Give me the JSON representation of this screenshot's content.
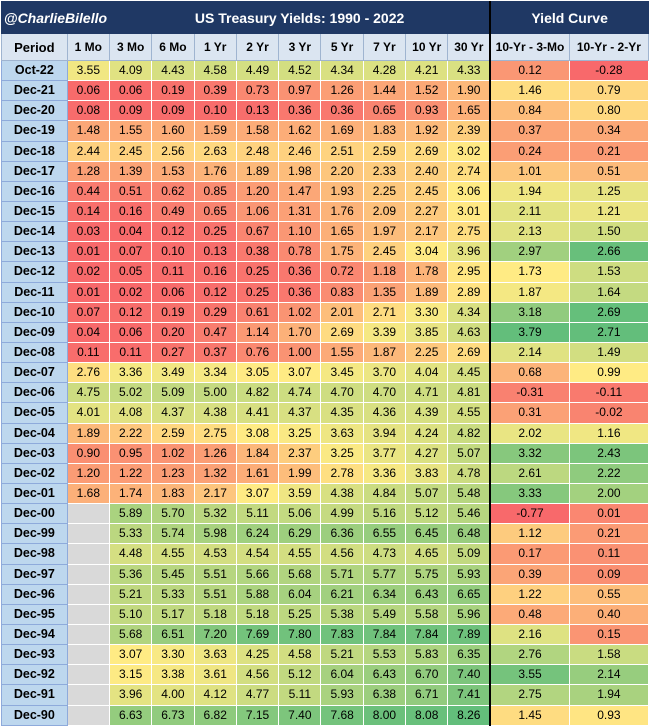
{
  "header": {
    "handle": "@CharlieBilello",
    "title": "US Treasury Yields: 1990 - 2022",
    "curve_title": "Yield Curve"
  },
  "colors": {
    "header_bg": "#1f3864",
    "header_text": "#ffffff",
    "column_header_bg": "#dbe5f1",
    "period_bg": "#bdd7ee",
    "missing_bg": "#d9d9d9",
    "scale_low": "#f8696b",
    "scale_mid": "#ffeb84",
    "scale_high": "#63be7b"
  },
  "chart_data": {
    "type": "table",
    "title": "US Treasury Yields: 1990 - 2022",
    "period_label": "Period",
    "yield_columns": [
      "1 Mo",
      "3 Mo",
      "6 Mo",
      "1 Yr",
      "2 Yr",
      "3 Yr",
      "5 Yr",
      "7 Yr",
      "10 Yr",
      "30 Yr"
    ],
    "curve_columns": [
      "10-Yr - 3-Mo",
      "10-Yr - 2-Yr"
    ],
    "rows": [
      {
        "period": "Oct-22",
        "yields": [
          "3.55",
          "4.09",
          "4.43",
          "4.58",
          "4.49",
          "4.52",
          "4.34",
          "4.28",
          "4.21",
          "4.33"
        ],
        "curve": [
          "0.12",
          "-0.28"
        ]
      },
      {
        "period": "Dec-21",
        "yields": [
          "0.06",
          "0.06",
          "0.19",
          "0.39",
          "0.73",
          "0.97",
          "1.26",
          "1.44",
          "1.52",
          "1.90"
        ],
        "curve": [
          "1.46",
          "0.79"
        ]
      },
      {
        "period": "Dec-20",
        "yields": [
          "0.08",
          "0.09",
          "0.09",
          "0.10",
          "0.13",
          "0.36",
          "0.36",
          "0.65",
          "0.93",
          "1.65"
        ],
        "curve": [
          "0.84",
          "0.80"
        ]
      },
      {
        "period": "Dec-19",
        "yields": [
          "1.48",
          "1.55",
          "1.60",
          "1.59",
          "1.58",
          "1.62",
          "1.69",
          "1.83",
          "1.92",
          "2.39"
        ],
        "curve": [
          "0.37",
          "0.34"
        ]
      },
      {
        "period": "Dec-18",
        "yields": [
          "2.44",
          "2.45",
          "2.56",
          "2.63",
          "2.48",
          "2.46",
          "2.51",
          "2.59",
          "2.69",
          "3.02"
        ],
        "curve": [
          "0.24",
          "0.21"
        ]
      },
      {
        "period": "Dec-17",
        "yields": [
          "1.28",
          "1.39",
          "1.53",
          "1.76",
          "1.89",
          "1.98",
          "2.20",
          "2.33",
          "2.40",
          "2.74"
        ],
        "curve": [
          "1.01",
          "0.51"
        ]
      },
      {
        "period": "Dec-16",
        "yields": [
          "0.44",
          "0.51",
          "0.62",
          "0.85",
          "1.20",
          "1.47",
          "1.93",
          "2.25",
          "2.45",
          "3.06"
        ],
        "curve": [
          "1.94",
          "1.25"
        ]
      },
      {
        "period": "Dec-15",
        "yields": [
          "0.14",
          "0.16",
          "0.49",
          "0.65",
          "1.06",
          "1.31",
          "1.76",
          "2.09",
          "2.27",
          "3.01"
        ],
        "curve": [
          "2.11",
          "1.21"
        ]
      },
      {
        "period": "Dec-14",
        "yields": [
          "0.03",
          "0.04",
          "0.12",
          "0.25",
          "0.67",
          "1.10",
          "1.65",
          "1.97",
          "2.17",
          "2.75"
        ],
        "curve": [
          "2.13",
          "1.50"
        ]
      },
      {
        "period": "Dec-13",
        "yields": [
          "0.01",
          "0.07",
          "0.10",
          "0.13",
          "0.38",
          "0.78",
          "1.75",
          "2.45",
          "3.04",
          "3.96"
        ],
        "curve": [
          "2.97",
          "2.66"
        ]
      },
      {
        "period": "Dec-12",
        "yields": [
          "0.02",
          "0.05",
          "0.11",
          "0.16",
          "0.25",
          "0.36",
          "0.72",
          "1.18",
          "1.78",
          "2.95"
        ],
        "curve": [
          "1.73",
          "1.53"
        ]
      },
      {
        "period": "Dec-11",
        "yields": [
          "0.01",
          "0.02",
          "0.06",
          "0.12",
          "0.25",
          "0.36",
          "0.83",
          "1.35",
          "1.89",
          "2.89"
        ],
        "curve": [
          "1.87",
          "1.64"
        ]
      },
      {
        "period": "Dec-10",
        "yields": [
          "0.07",
          "0.12",
          "0.19",
          "0.29",
          "0.61",
          "1.02",
          "2.01",
          "2.71",
          "3.30",
          "4.34"
        ],
        "curve": [
          "3.18",
          "2.69"
        ]
      },
      {
        "period": "Dec-09",
        "yields": [
          "0.04",
          "0.06",
          "0.20",
          "0.47",
          "1.14",
          "1.70",
          "2.69",
          "3.39",
          "3.85",
          "4.63"
        ],
        "curve": [
          "3.79",
          "2.71"
        ]
      },
      {
        "period": "Dec-08",
        "yields": [
          "0.11",
          "0.11",
          "0.27",
          "0.37",
          "0.76",
          "1.00",
          "1.55",
          "1.87",
          "2.25",
          "2.69"
        ],
        "curve": [
          "2.14",
          "1.49"
        ]
      },
      {
        "period": "Dec-07",
        "yields": [
          "2.76",
          "3.36",
          "3.49",
          "3.34",
          "3.05",
          "3.07",
          "3.45",
          "3.70",
          "4.04",
          "4.45"
        ],
        "curve": [
          "0.68",
          "0.99"
        ]
      },
      {
        "period": "Dec-06",
        "yields": [
          "4.75",
          "5.02",
          "5.09",
          "5.00",
          "4.82",
          "4.74",
          "4.70",
          "4.70",
          "4.71",
          "4.81"
        ],
        "curve": [
          "-0.31",
          "-0.11"
        ]
      },
      {
        "period": "Dec-05",
        "yields": [
          "4.01",
          "4.08",
          "4.37",
          "4.38",
          "4.41",
          "4.37",
          "4.35",
          "4.36",
          "4.39",
          "4.55"
        ],
        "curve": [
          "0.31",
          "-0.02"
        ]
      },
      {
        "period": "Dec-04",
        "yields": [
          "1.89",
          "2.22",
          "2.59",
          "2.75",
          "3.08",
          "3.25",
          "3.63",
          "3.94",
          "4.24",
          "4.82"
        ],
        "curve": [
          "2.02",
          "1.16"
        ]
      },
      {
        "period": "Dec-03",
        "yields": [
          "0.90",
          "0.95",
          "1.02",
          "1.26",
          "1.84",
          "2.37",
          "3.25",
          "3.77",
          "4.27",
          "5.07"
        ],
        "curve": [
          "3.32",
          "2.43"
        ]
      },
      {
        "period": "Dec-02",
        "yields": [
          "1.20",
          "1.22",
          "1.23",
          "1.32",
          "1.61",
          "1.99",
          "2.78",
          "3.36",
          "3.83",
          "4.78"
        ],
        "curve": [
          "2.61",
          "2.22"
        ]
      },
      {
        "period": "Dec-01",
        "yields": [
          "1.68",
          "1.74",
          "1.83",
          "2.17",
          "3.07",
          "3.59",
          "4.38",
          "4.84",
          "5.07",
          "5.48"
        ],
        "curve": [
          "3.33",
          "2.00"
        ]
      },
      {
        "period": "Dec-00",
        "yields": [
          "",
          "5.89",
          "5.70",
          "5.32",
          "5.11",
          "5.06",
          "4.99",
          "5.16",
          "5.12",
          "5.46"
        ],
        "curve": [
          "-0.77",
          "0.01"
        ]
      },
      {
        "period": "Dec-99",
        "yields": [
          "",
          "5.33",
          "5.74",
          "5.98",
          "6.24",
          "6.29",
          "6.36",
          "6.55",
          "6.45",
          "6.48"
        ],
        "curve": [
          "1.12",
          "0.21"
        ]
      },
      {
        "period": "Dec-98",
        "yields": [
          "",
          "4.48",
          "4.55",
          "4.53",
          "4.54",
          "4.55",
          "4.56",
          "4.73",
          "4.65",
          "5.09"
        ],
        "curve": [
          "0.17",
          "0.11"
        ]
      },
      {
        "period": "Dec-97",
        "yields": [
          "",
          "5.36",
          "5.45",
          "5.51",
          "5.66",
          "5.68",
          "5.71",
          "5.77",
          "5.75",
          "5.93"
        ],
        "curve": [
          "0.39",
          "0.09"
        ]
      },
      {
        "period": "Dec-96",
        "yields": [
          "",
          "5.21",
          "5.33",
          "5.51",
          "5.88",
          "6.04",
          "6.21",
          "6.34",
          "6.43",
          "6.65"
        ],
        "curve": [
          "1.22",
          "0.55"
        ]
      },
      {
        "period": "Dec-95",
        "yields": [
          "",
          "5.10",
          "5.17",
          "5.18",
          "5.18",
          "5.25",
          "5.38",
          "5.49",
          "5.58",
          "5.96"
        ],
        "curve": [
          "0.48",
          "0.40"
        ]
      },
      {
        "period": "Dec-94",
        "yields": [
          "",
          "5.68",
          "6.51",
          "7.20",
          "7.69",
          "7.80",
          "7.83",
          "7.84",
          "7.84",
          "7.89"
        ],
        "curve": [
          "2.16",
          "0.15"
        ]
      },
      {
        "period": "Dec-93",
        "yields": [
          "",
          "3.07",
          "3.30",
          "3.63",
          "4.25",
          "4.58",
          "5.21",
          "5.53",
          "5.83",
          "6.35"
        ],
        "curve": [
          "2.76",
          "1.58"
        ]
      },
      {
        "period": "Dec-92",
        "yields": [
          "",
          "3.15",
          "3.38",
          "3.61",
          "4.56",
          "5.12",
          "6.04",
          "6.43",
          "6.70",
          "7.40"
        ],
        "curve": [
          "3.55",
          "2.14"
        ]
      },
      {
        "period": "Dec-91",
        "yields": [
          "",
          "3.96",
          "4.00",
          "4.12",
          "4.77",
          "5.11",
          "5.93",
          "6.38",
          "6.71",
          "7.41"
        ],
        "curve": [
          "2.75",
          "1.94"
        ]
      },
      {
        "period": "Dec-90",
        "yields": [
          "",
          "6.63",
          "6.73",
          "6.82",
          "7.15",
          "7.40",
          "7.68",
          "8.00",
          "8.08",
          "8.26"
        ],
        "curve": [
          "1.45",
          "0.93"
        ]
      }
    ]
  }
}
